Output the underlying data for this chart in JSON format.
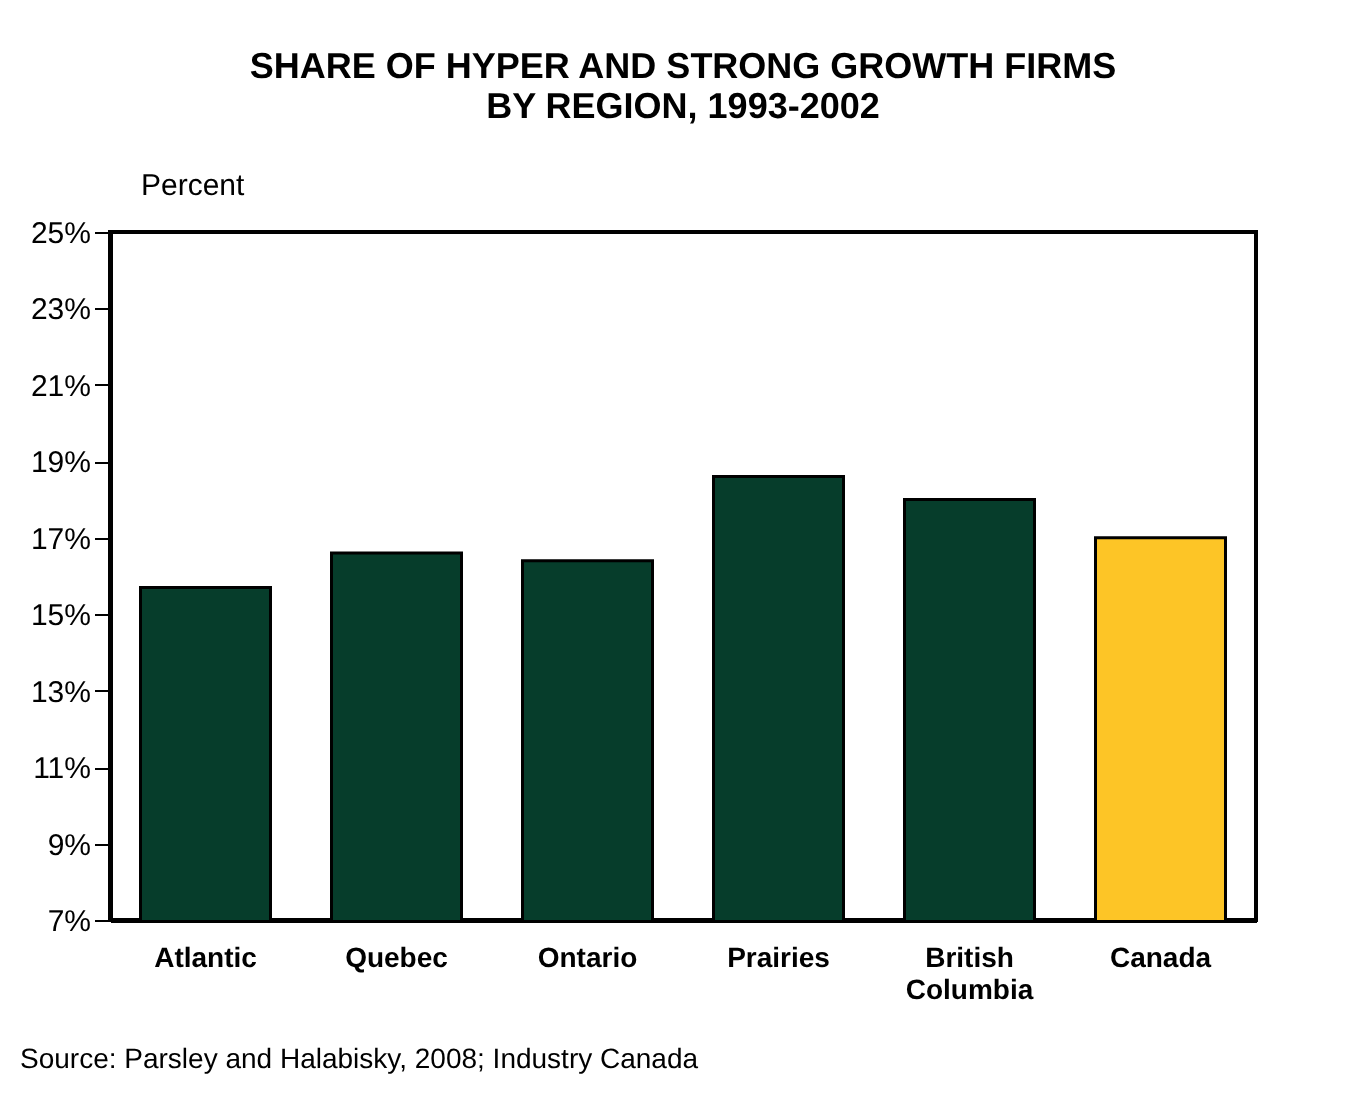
{
  "chart_data": {
    "type": "bar",
    "title": "SHARE OF HYPER AND STRONG GROWTH FIRMS\nBY REGION, 1993-2002",
    "ylabel": "Percent",
    "categories": [
      "Atlantic",
      "Quebec",
      "Ontario",
      "Prairies",
      "British Columbia",
      "Canada"
    ],
    "values": [
      15.7,
      16.6,
      16.4,
      18.6,
      18.0,
      17.0
    ],
    "colors": [
      "#063d2b",
      "#063d2b",
      "#063d2b",
      "#063d2b",
      "#063d2b",
      "#fdc526"
    ],
    "ylim": [
      7,
      25
    ],
    "yticks": [
      {
        "value": 7,
        "label": "7%"
      },
      {
        "value": 9,
        "label": "9%"
      },
      {
        "value": 11,
        "label": "11%"
      },
      {
        "value": 13,
        "label": "13%"
      },
      {
        "value": 15,
        "label": "15%"
      },
      {
        "value": 17,
        "label": "17%"
      },
      {
        "value": 19,
        "label": "19%"
      },
      {
        "value": 21,
        "label": "21%"
      },
      {
        "value": 23,
        "label": "23%"
      },
      {
        "value": 25,
        "label": "25%"
      }
    ],
    "grid": false,
    "annotations": [
      "Source: Parsley and Halabisky, 2008; Industry Canada"
    ]
  }
}
